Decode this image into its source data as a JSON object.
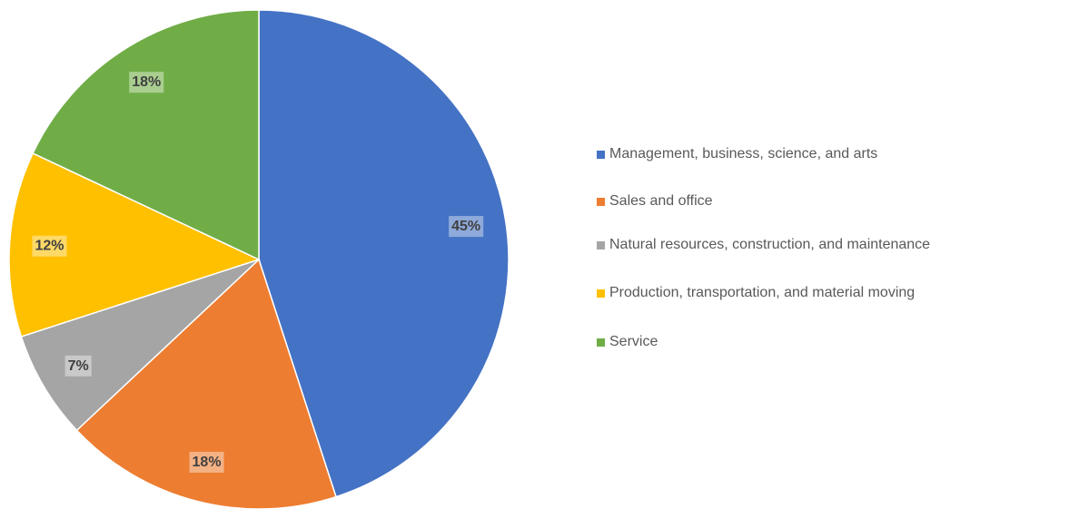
{
  "chart_data": {
    "type": "pie",
    "categories": [
      "Management, business, science, and arts",
      "Sales and office",
      "Natural resources, construction, and maintenance",
      "Production, transportation, and material moving",
      "Service"
    ],
    "values": [
      45,
      18,
      7,
      12,
      18
    ],
    "value_labels": [
      "45%",
      "18%",
      "7%",
      "12%",
      "18%"
    ],
    "colors": [
      "#4472c4",
      "#ed7d31",
      "#a5a5a5",
      "#ffc000",
      "#70ad47"
    ],
    "legend": "right"
  }
}
